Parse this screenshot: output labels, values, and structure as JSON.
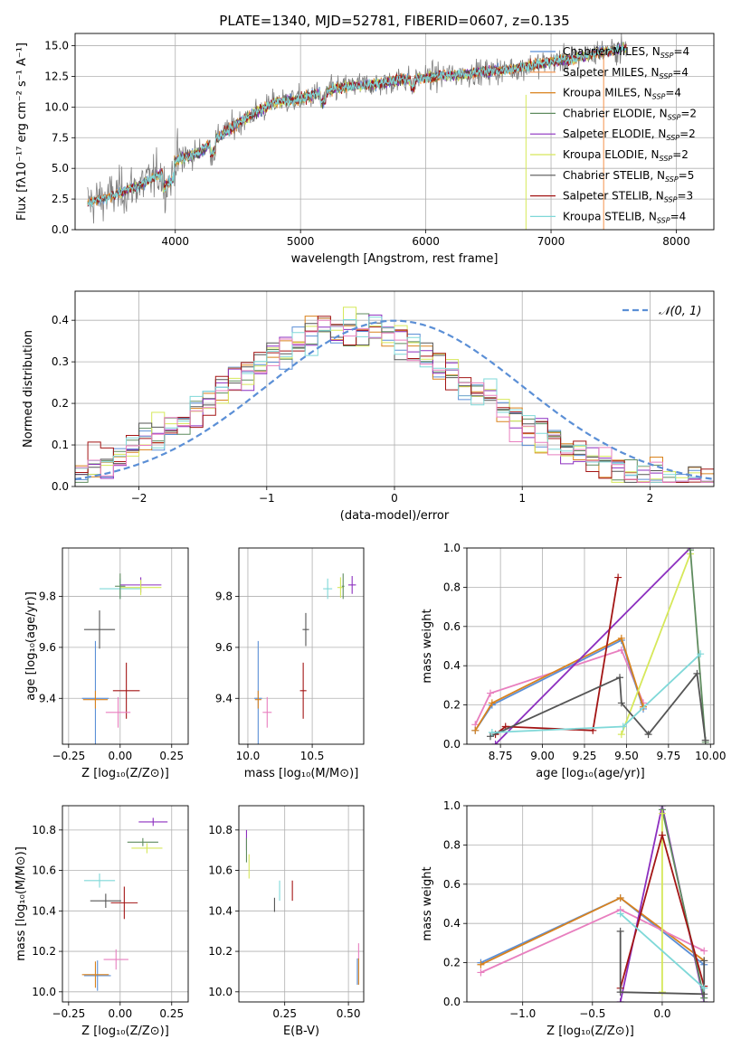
{
  "title": "PLATE=1340, MJD=52781, FIBERID=0607, z=0.135",
  "colors": {
    "chabrier_miles": "#5b8fd6",
    "salpeter_miles": "#f4924a",
    "kroupa_miles": "#d9821d",
    "chabrier_elodie": "#5f8c5f",
    "salpeter_elodie": "#8c2fbf",
    "kroupa_elodie": "#d6e85a",
    "chabrier_stelib": "#555555",
    "salpeter_stelib": "#a31515",
    "kroupa_stelib": "#7fd8d8",
    "extra_pink": "#e87fbf",
    "data": "#808080",
    "normal": "#5b8fd6"
  },
  "chart_data": [
    {
      "type": "line",
      "id": "spectrum",
      "title": "PLATE=1340, MJD=52781, FIBERID=0607, z=0.135",
      "xlabel": "wavelength [Angstrom, rest frame]",
      "ylabel": "Flux [fλ10⁻¹⁷ erg cm⁻² s⁻¹ A⁻¹]",
      "xlim": [
        3200,
        8300
      ],
      "ylim": [
        0,
        16
      ],
      "xticks": [
        "4000",
        "5000",
        "6000",
        "7000",
        "8000"
      ],
      "yticks": [
        "0.0",
        "2.5",
        "5.0",
        "7.5",
        "10.0",
        "12.5",
        "15.0"
      ],
      "continuum": {
        "x": [
          3300,
          3500,
          3700,
          3900,
          4000,
          4200,
          4400,
          4600,
          4800,
          5000,
          5200,
          5400,
          5600,
          5800,
          6000,
          6200,
          6400,
          6600,
          6800,
          7000,
          7200,
          7400,
          7600
        ],
        "y": [
          2.2,
          2.8,
          3.6,
          4.6,
          5.6,
          6.4,
          8.0,
          9.3,
          10.4,
          10.6,
          11.3,
          11.7,
          11.9,
          12.2,
          12.4,
          12.6,
          12.8,
          13.0,
          13.3,
          13.7,
          14.0,
          14.5,
          14.8
        ]
      },
      "legend": [
        {
          "label": "Chabrier MILES, N",
          "sub": "SSP",
          "suffix": "=4"
        },
        {
          "label": "Salpeter MILES, N",
          "sub": "SSP",
          "suffix": "=4"
        },
        {
          "label": "Kroupa MILES, N",
          "sub": "SSP",
          "suffix": "=4"
        },
        {
          "label": "Chabrier ELODIE, N",
          "sub": "SSP",
          "suffix": "=2"
        },
        {
          "label": "Salpeter ELODIE, N",
          "sub": "SSP",
          "suffix": "=2"
        },
        {
          "label": "Kroupa ELODIE, N",
          "sub": "SSP",
          "suffix": "=2"
        },
        {
          "label": "Chabrier STELIB, N",
          "sub": "SSP",
          "suffix": "=5"
        },
        {
          "label": "Salpeter STELIB, N",
          "sub": "SSP",
          "suffix": "=3"
        },
        {
          "label": "Kroupa STELIB, N",
          "sub": "SSP",
          "suffix": "=4"
        }
      ]
    },
    {
      "type": "histogram",
      "id": "residuals",
      "xlabel": "(data-model)/error",
      "ylabel": "Normed distribution",
      "xlim": [
        -2.5,
        2.5
      ],
      "ylim": [
        0,
        0.47
      ],
      "xticks": [
        "−2",
        "−1",
        "0",
        "1",
        "2"
      ],
      "yticks": [
        "0.0",
        "0.1",
        "0.2",
        "0.3",
        "0.4"
      ],
      "bin_width": 0.1,
      "legend": "𝒩(0, 1)"
    },
    {
      "type": "scatter",
      "id": "age_vs_Z",
      "xlabel": "Z [log₁₀(Z/Z⊙)]",
      "ylabel": "age  [log₁₀(age/yr)]",
      "xlim": [
        -0.28,
        0.33
      ],
      "ylim": [
        9.22,
        9.99
      ],
      "xticks": [
        "−0.25",
        "0.00",
        "0.25"
      ],
      "yticks": [
        "9.4",
        "9.6",
        "9.8"
      ],
      "points": [
        {
          "c": "kroupa_stelib",
          "x": 0.0,
          "xe": 0.2,
          "y": 9.83,
          "ye": 0.08
        },
        {
          "c": "salpeter_elodie",
          "x": 0.1,
          "xe": 0.2,
          "y": 9.845,
          "ye": 0.06
        },
        {
          "c": "kroupa_elodie",
          "x": 0.1,
          "xe": 0.2,
          "y": 9.835,
          "ye": 0.06
        },
        {
          "c": "chabrier_elodie",
          "x": 0.0,
          "xe": 0.05,
          "y": 9.84,
          "ye": 0.1
        },
        {
          "c": "chabrier_stelib",
          "x": -0.1,
          "xe": 0.15,
          "y": 9.67,
          "ye": 0.15
        },
        {
          "c": "salpeter_stelib",
          "x": 0.03,
          "xe": 0.13,
          "y": 9.43,
          "ye": 0.22
        },
        {
          "c": "chabrier_miles",
          "x": -0.12,
          "xe": 0.13,
          "y": 9.4,
          "ye": 0.45
        },
        {
          "c": "kroupa_miles",
          "x": -0.12,
          "xe": 0.12,
          "y": 9.395,
          "ye": 0.07
        },
        {
          "c": "extra_pink",
          "x": -0.01,
          "xe": 0.12,
          "y": 9.345,
          "ye": 0.12
        }
      ]
    },
    {
      "type": "scatter",
      "id": "age_vs_mass",
      "xlabel": "mass [log₁₀(M/M⊙)]",
      "ylabel": "",
      "xlim": [
        9.93,
        10.9
      ],
      "ylim": [
        9.22,
        9.99
      ],
      "xticks": [
        "10.0",
        "10.5"
      ],
      "yticks": [
        "9.4",
        "9.6",
        "9.8"
      ],
      "points": [
        {
          "c": "kroupa_stelib",
          "x": 10.62,
          "xe": 0.07,
          "y": 9.83,
          "ye": 0.08
        },
        {
          "c": "salpeter_elodie",
          "x": 10.81,
          "xe": 0.06,
          "y": 9.845,
          "ye": 0.07
        },
        {
          "c": "kroupa_elodie",
          "x": 10.72,
          "xe": 0.05,
          "y": 9.835,
          "ye": 0.08
        },
        {
          "c": "chabrier_elodie",
          "x": 10.74,
          "xe": 0.02,
          "y": 9.84,
          "ye": 0.1
        },
        {
          "c": "chabrier_stelib",
          "x": 10.45,
          "xe": 0.05,
          "y": 9.67,
          "ye": 0.13
        },
        {
          "c": "salpeter_stelib",
          "x": 10.43,
          "xe": 0.05,
          "y": 9.43,
          "ye": 0.22
        },
        {
          "c": "chabrier_miles",
          "x": 10.08,
          "xe": 0.06,
          "y": 9.4,
          "ye": 0.45
        },
        {
          "c": "kroupa_miles",
          "x": 10.08,
          "xe": 0.05,
          "y": 9.395,
          "ye": 0.07
        },
        {
          "c": "extra_pink",
          "x": 10.15,
          "xe": 0.07,
          "y": 9.345,
          "ye": 0.12
        }
      ]
    },
    {
      "type": "line",
      "id": "weight_vs_age",
      "xlabel": "age  [log₁₀(age/yr)]",
      "ylabel": "mass weight",
      "xlim": [
        8.55,
        10.02
      ],
      "ylim": [
        0,
        1
      ],
      "xticks": [
        "8.75",
        "9.00",
        "9.25",
        "9.50",
        "9.75",
        "10.00"
      ],
      "yticks": [
        "0.0",
        "0.2",
        "0.4",
        "0.6",
        "0.8",
        "1.0"
      ],
      "series": [
        {
          "c": "extra_pink",
          "x": [
            8.6,
            8.69,
            9.47,
            9.6
          ],
          "y": [
            0.1,
            0.26,
            0.48,
            0.21
          ]
        },
        {
          "c": "chabrier_miles",
          "x": [
            8.6,
            8.7,
            9.47,
            9.6
          ],
          "y": [
            0.07,
            0.2,
            0.53,
            0.18
          ]
        },
        {
          "c": "kroupa_miles",
          "x": [
            8.6,
            8.7,
            9.47,
            9.6
          ],
          "y": [
            0.07,
            0.21,
            0.54,
            0.19
          ]
        },
        {
          "c": "salpeter_elodie",
          "x": [
            8.72,
            9.88
          ],
          "y": [
            0.0,
            1.0
          ]
        },
        {
          "c": "kroupa_elodie",
          "x": [
            9.47,
            9.88
          ],
          "y": [
            0.05,
            0.97
          ]
        },
        {
          "c": "chabrier_elodie",
          "x": [
            9.88,
            9.97
          ],
          "y": [
            0.99,
            0.01
          ]
        },
        {
          "c": "salpeter_stelib",
          "x": [
            8.72,
            8.78,
            9.3,
            9.45
          ],
          "y": [
            0.05,
            0.09,
            0.07,
            0.85
          ]
        },
        {
          "c": "chabrier_stelib",
          "x": [
            8.69,
            9.46,
            9.47,
            9.63,
            9.92,
            9.97
          ],
          "y": [
            0.04,
            0.34,
            0.21,
            0.05,
            0.36,
            0.02
          ]
        },
        {
          "c": "kroupa_stelib",
          "x": [
            8.7,
            9.48,
            9.94
          ],
          "y": [
            0.06,
            0.09,
            0.46
          ]
        }
      ]
    },
    {
      "type": "scatter",
      "id": "mass_vs_Z",
      "xlabel": "Z [log₁₀(Z/Z⊙)]",
      "ylabel": "mass [log₁₀(M/M⊙)]",
      "xlim": [
        -0.28,
        0.33
      ],
      "ylim": [
        9.95,
        10.92
      ],
      "xticks": [
        "−0.25",
        "0.00",
        "0.25"
      ],
      "yticks": [
        "10.0",
        "10.2",
        "10.4",
        "10.6",
        "10.8"
      ],
      "points": [
        {
          "c": "salpeter_elodie",
          "x": 0.16,
          "xe": 0.14,
          "y": 10.84,
          "ye": 0.04
        },
        {
          "c": "chabrier_elodie",
          "x": 0.11,
          "xe": 0.15,
          "y": 10.74,
          "ye": 0.04
        },
        {
          "c": "kroupa_elodie",
          "x": 0.13,
          "xe": 0.15,
          "y": 10.71,
          "ye": 0.05
        },
        {
          "c": "kroupa_stelib",
          "x": -0.1,
          "xe": 0.15,
          "y": 10.55,
          "ye": 0.07
        },
        {
          "c": "chabrier_stelib",
          "x": -0.07,
          "xe": 0.15,
          "y": 10.45,
          "ye": 0.07
        },
        {
          "c": "salpeter_stelib",
          "x": 0.02,
          "xe": 0.13,
          "y": 10.44,
          "ye": 0.16
        },
        {
          "c": "extra_pink",
          "x": -0.02,
          "xe": 0.12,
          "y": 10.16,
          "ye": 0.1
        },
        {
          "c": "chabrier_miles",
          "x": -0.11,
          "xe": 0.13,
          "y": 10.08,
          "ye": 0.15
        },
        {
          "c": "kroupa_miles",
          "x": -0.12,
          "xe": 0.13,
          "y": 10.085,
          "ye": 0.13
        }
      ]
    },
    {
      "type": "scatter",
      "id": "mass_vs_ebv",
      "xlabel": "E(B-V)",
      "ylabel": "",
      "xlim": [
        0.07,
        0.56
      ],
      "ylim": [
        9.95,
        10.92
      ],
      "xticks": [
        "0.25",
        "0.50"
      ],
      "yticks": [
        "10.0",
        "10.2",
        "10.4",
        "10.6",
        "10.8"
      ],
      "points": [
        {
          "c": "salpeter_elodie",
          "x": 0.1,
          "xe": 0.0,
          "y": 10.75,
          "ye": 0.1
        },
        {
          "c": "chabrier_elodie",
          "x": 0.1,
          "xe": 0.0,
          "y": 10.7,
          "ye": 0.12
        },
        {
          "c": "kroupa_elodie",
          "x": 0.11,
          "xe": 0.0,
          "y": 10.62,
          "ye": 0.12
        },
        {
          "c": "kroupa_stelib",
          "x": 0.23,
          "xe": 0.0,
          "y": 10.5,
          "ye": 0.1
        },
        {
          "c": "chabrier_stelib",
          "x": 0.21,
          "xe": 0.0,
          "y": 10.43,
          "ye": 0.07
        },
        {
          "c": "salpeter_stelib",
          "x": 0.28,
          "xe": 0.0,
          "y": 10.5,
          "ye": 0.1
        },
        {
          "c": "extra_pink",
          "x": 0.54,
          "xe": 0.0,
          "y": 10.2,
          "ye": 0.08
        },
        {
          "c": "chabrier_miles",
          "x": 0.535,
          "xe": 0.0,
          "y": 10.1,
          "ye": 0.13
        },
        {
          "c": "kroupa_miles",
          "x": 0.54,
          "xe": 0.0,
          "y": 10.1,
          "ye": 0.13
        }
      ]
    },
    {
      "type": "line",
      "id": "weight_vs_Z",
      "xlabel": "Z [log₁₀(Z/Z⊙)]",
      "ylabel": "mass weight",
      "xlim": [
        -1.4,
        0.37
      ],
      "ylim": [
        0,
        1
      ],
      "xticks": [
        "−1.0",
        "−0.5",
        "0.0"
      ],
      "yticks": [
        "0.0",
        "0.2",
        "0.4",
        "0.6",
        "0.8",
        "1.0"
      ],
      "series": [
        {
          "c": "chabrier_miles",
          "x": [
            -1.3,
            -0.3,
            0.3
          ],
          "y": [
            0.2,
            0.53,
            0.19
          ]
        },
        {
          "c": "kroupa_miles",
          "x": [
            -1.3,
            -0.3,
            0.3
          ],
          "y": [
            0.19,
            0.53,
            0.21
          ]
        },
        {
          "c": "extra_pink",
          "x": [
            -1.3,
            -0.3,
            0.3
          ],
          "y": [
            0.15,
            0.47,
            0.26
          ]
        },
        {
          "c": "salpeter_elodie",
          "x": [
            -0.3,
            0.0,
            0.3
          ],
          "y": [
            0.0,
            1.0,
            0.0
          ]
        },
        {
          "c": "chabrier_elodie",
          "x": [
            0.0,
            0.3
          ],
          "y": [
            0.98,
            0.02
          ]
        },
        {
          "c": "kroupa_elodie",
          "x": [
            0.0,
            0.0
          ],
          "y": [
            0.96,
            0.05
          ]
        },
        {
          "c": "salpeter_stelib",
          "x": [
            -0.3,
            0.0,
            0.3
          ],
          "y": [
            0.07,
            0.85,
            0.08
          ]
        },
        {
          "c": "chabrier_stelib",
          "x": [
            -0.3,
            -0.3,
            0.3,
            0.3
          ],
          "y": [
            0.36,
            0.05,
            0.04,
            0.21
          ]
        },
        {
          "c": "kroupa_stelib",
          "x": [
            -0.3,
            0.3
          ],
          "y": [
            0.45,
            0.07
          ]
        }
      ]
    }
  ]
}
